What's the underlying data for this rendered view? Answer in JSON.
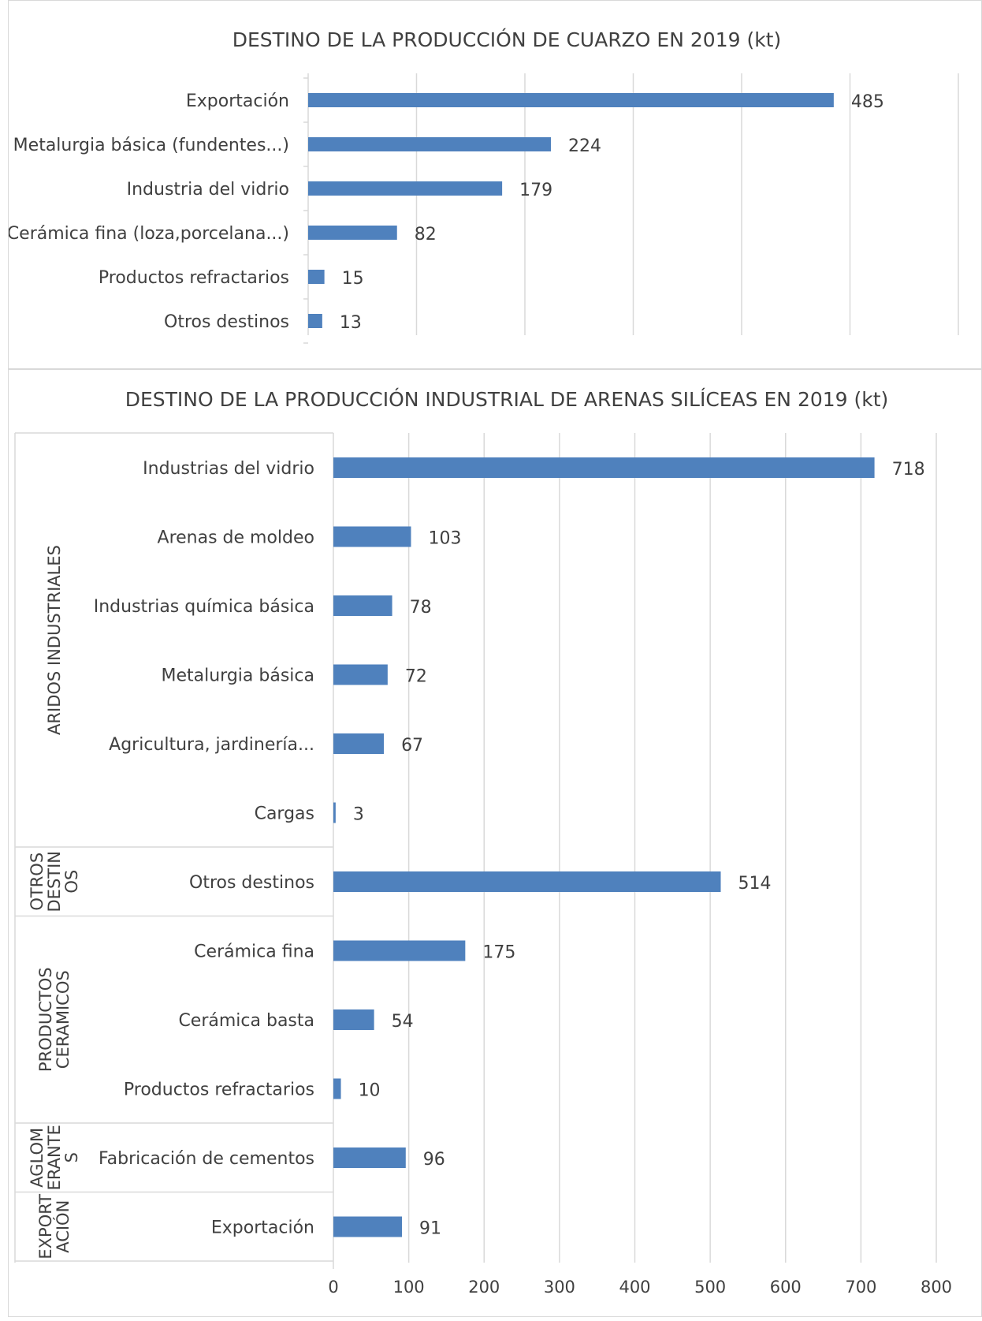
{
  "chart_data": [
    {
      "type": "bar",
      "orientation": "horizontal",
      "title": "DESTINO DE LA PRODUCCIÓN DE CUARZO EN 2019 (kt)",
      "categories": [
        "Exportación",
        "Metalurgia básica (fundentes...)",
        "Industria del vidrio",
        "Cerámica fina (loza,porcelana...)",
        "Productos refractarios",
        "Otros destinos"
      ],
      "values": [
        485,
        224,
        179,
        82,
        15,
        13
      ],
      "xlim": [
        0,
        600
      ],
      "grid": true,
      "color": "#4f81bd"
    },
    {
      "type": "bar",
      "orientation": "horizontal",
      "title": "DESTINO DE LA PRODUCCIÓN INDUSTRIAL DE ARENAS SILÍCEAS EN 2019 (kt)",
      "categories": [
        "Industrias del vidrio",
        "Arenas de moldeo",
        "Industrias química básica",
        "Metalurgia básica",
        "Agricultura, jardinería...",
        "Cargas",
        "Otros destinos",
        "Cerámica fina",
        "Cerámica basta",
        "Productos refractarios",
        "Fabricación de cementos",
        "Exportación"
      ],
      "values": [
        718,
        103,
        78,
        72,
        67,
        3,
        514,
        175,
        54,
        10,
        96,
        91
      ],
      "groups": [
        {
          "lines": [
            "ARIDOS INDUSTRIALES"
          ],
          "count": 6
        },
        {
          "lines": [
            "OTROS",
            "DESTIN",
            "OS"
          ],
          "count": 1
        },
        {
          "lines": [
            "PRODUCTOS",
            "CERAMICOS"
          ],
          "count": 3
        },
        {
          "lines": [
            "AGLOM",
            "ERANTE",
            "S"
          ],
          "count": 1
        },
        {
          "lines": [
            "EXPORT",
            "ACIÓN"
          ],
          "count": 1
        }
      ],
      "xlim": [
        0,
        800
      ],
      "xticks": [
        "0",
        "100",
        "200",
        "300",
        "400",
        "500",
        "600",
        "700",
        "800"
      ],
      "grid": true,
      "color": "#4f81bd"
    }
  ]
}
